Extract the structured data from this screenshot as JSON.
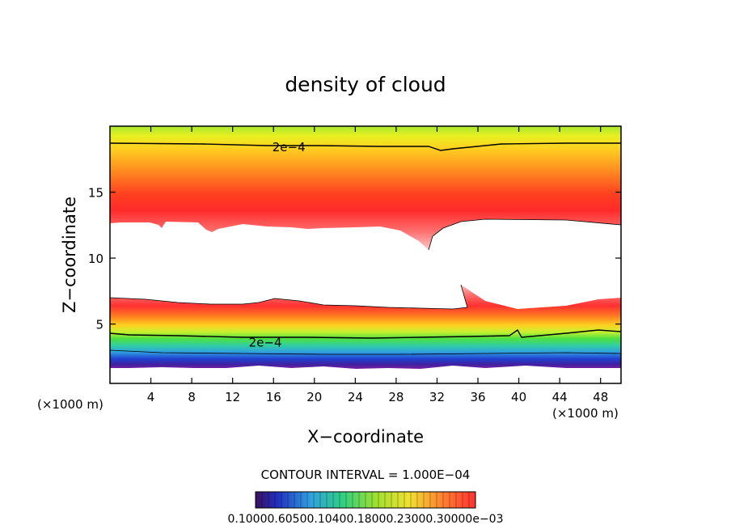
{
  "chart_data": {
    "type": "heatmap",
    "title": "density of cloud",
    "xlabel": "X−coordinate",
    "ylabel": "Z−coordinate",
    "x_unit_left": "(×1000 m)",
    "x_unit_right": "(×1000 m)",
    "xlim": [
      0,
      50
    ],
    "ylim": [
      0.5,
      20
    ],
    "x_ticks": [
      4,
      8,
      12,
      16,
      20,
      24,
      28,
      32,
      36,
      40,
      44,
      48
    ],
    "y_ticks": [
      5,
      10,
      15
    ],
    "contour_labels": [
      {
        "text": "2e−4",
        "x": 17.5,
        "z": 18.4
      },
      {
        "text": "2e−4",
        "x": 15.2,
        "z": 3.6
      }
    ],
    "contour_interval_text": "CONTOUR INTERVAL = 1.000E−04",
    "colorbar_labels_text": "0.10000.60500.10400.18000.23000.30000e−03",
    "colorbar_min": 0.0001,
    "colorbar_max": 0.0003,
    "colors": {
      "low": "#5a1a8a",
      "mid_low": "#2040d0",
      "mid": "#30d080",
      "mid_high": "#f0e030",
      "high": "#ff2020"
    }
  }
}
